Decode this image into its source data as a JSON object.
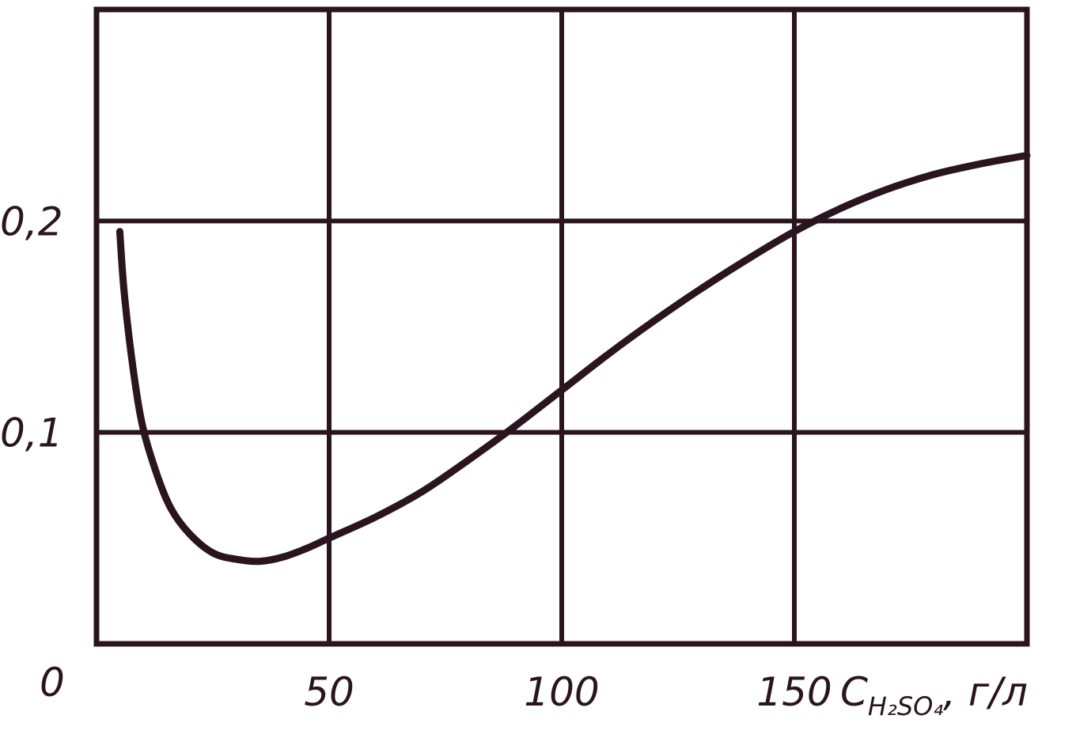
{
  "chart_data": {
    "type": "line",
    "title": "",
    "xlabel": {
      "symbol": "C",
      "subscript": "H₂SO₄",
      "unit": ", г/л"
    },
    "ylabel": "",
    "xlim": [
      0,
      200
    ],
    "ylim": [
      0,
      0.3
    ],
    "origin_label": "0",
    "x_ticks": [
      {
        "value": 50,
        "label": "50"
      },
      {
        "value": 100,
        "label": "100"
      },
      {
        "value": 150,
        "label": "150"
      }
    ],
    "y_ticks": [
      {
        "value": 0.1,
        "label": "0,1"
      },
      {
        "value": 0.2,
        "label": "0,2"
      }
    ],
    "grid": true,
    "series": [
      {
        "color": "#2a1420",
        "points": [
          [
            5,
            0.195
          ],
          [
            6,
            0.165
          ],
          [
            8,
            0.128
          ],
          [
            10,
            0.102
          ],
          [
            13,
            0.08
          ],
          [
            16,
            0.064
          ],
          [
            20,
            0.052
          ],
          [
            25,
            0.043
          ],
          [
            30,
            0.04
          ],
          [
            35,
            0.039
          ],
          [
            40,
            0.041
          ],
          [
            45,
            0.045
          ],
          [
            50,
            0.05
          ],
          [
            60,
            0.06
          ],
          [
            70,
            0.072
          ],
          [
            80,
            0.087
          ],
          [
            90,
            0.103
          ],
          [
            100,
            0.12
          ],
          [
            110,
            0.137
          ],
          [
            120,
            0.153
          ],
          [
            130,
            0.168
          ],
          [
            140,
            0.182
          ],
          [
            150,
            0.195
          ],
          [
            160,
            0.206
          ],
          [
            170,
            0.215
          ],
          [
            180,
            0.222
          ],
          [
            190,
            0.227
          ],
          [
            200,
            0.231
          ]
        ]
      }
    ]
  }
}
